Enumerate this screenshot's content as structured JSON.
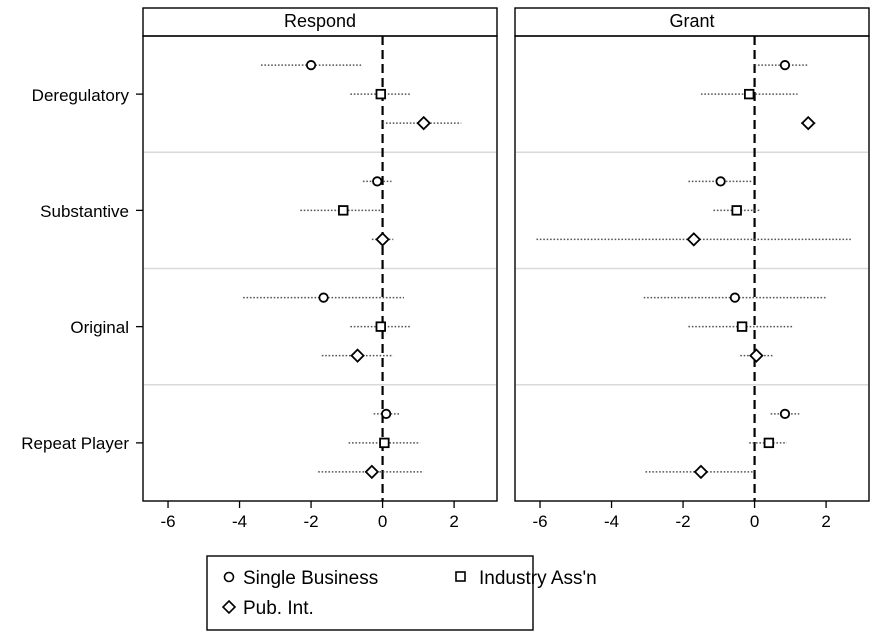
{
  "chart_data": {
    "type": "scatter",
    "subtype": "coefficient-plot-with-confidence-intervals",
    "facets": [
      "Respond",
      "Grant"
    ],
    "categories": [
      "Deregulatory",
      "Substantive",
      "Original",
      "Repeat Player"
    ],
    "xlim": [
      -6.7,
      3.2
    ],
    "x_ticks": [
      -6,
      -4,
      -2,
      0,
      2
    ],
    "x_tick_labels": [
      "-6",
      "-4",
      "-2",
      "0",
      "2"
    ],
    "reference_line_x": 0,
    "grid": false,
    "legend": {
      "placement": "bottom",
      "entries": [
        {
          "label": "Single Business",
          "marker": "circle"
        },
        {
          "label": "Industry Ass'n",
          "marker": "square"
        },
        {
          "label": "Pub. Int.",
          "marker": "diamond"
        }
      ]
    },
    "series": [
      {
        "name": "Single Business",
        "marker": "circle",
        "panels": {
          "Respond": [
            {
              "category": "Deregulatory",
              "estimate": -2.0,
              "ci": [
                -3.4,
                -0.6
              ]
            },
            {
              "category": "Substantive",
              "estimate": -0.15,
              "ci": [
                -0.55,
                0.25
              ]
            },
            {
              "category": "Original",
              "estimate": -1.65,
              "ci": [
                -3.9,
                0.6
              ]
            },
            {
              "category": "Repeat Player",
              "estimate": 0.1,
              "ci": [
                -0.25,
                0.5
              ]
            }
          ],
          "Grant": [
            {
              "category": "Deregulatory",
              "estimate": 0.85,
              "ci": [
                0.0,
                1.5
              ]
            },
            {
              "category": "Substantive",
              "estimate": -0.95,
              "ci": [
                -1.85,
                -0.05
              ]
            },
            {
              "category": "Original",
              "estimate": -0.55,
              "ci": [
                -3.1,
                2.0
              ]
            },
            {
              "category": "Repeat Player",
              "estimate": 0.85,
              "ci": [
                0.45,
                1.25
              ]
            }
          ]
        }
      },
      {
        "name": "Industry Ass'n",
        "marker": "square",
        "panels": {
          "Respond": [
            {
              "category": "Deregulatory",
              "estimate": -0.05,
              "ci": [
                -0.9,
                0.8
              ]
            },
            {
              "category": "Substantive",
              "estimate": -1.1,
              "ci": [
                -2.3,
                0.0
              ]
            },
            {
              "category": "Original",
              "estimate": -0.05,
              "ci": [
                -0.9,
                0.8
              ]
            },
            {
              "category": "Repeat Player",
              "estimate": 0.05,
              "ci": [
                -0.95,
                1.05
              ]
            }
          ],
          "Grant": [
            {
              "category": "Deregulatory",
              "estimate": -0.15,
              "ci": [
                -1.5,
                1.2
              ]
            },
            {
              "category": "Substantive",
              "estimate": -0.5,
              "ci": [
                -1.15,
                0.15
              ]
            },
            {
              "category": "Original",
              "estimate": -0.35,
              "ci": [
                -1.85,
                1.1
              ]
            },
            {
              "category": "Repeat Player",
              "estimate": 0.4,
              "ci": [
                -0.15,
                0.9
              ]
            }
          ]
        }
      },
      {
        "name": "Pub. Int.",
        "marker": "diamond",
        "panels": {
          "Respond": [
            {
              "category": "Deregulatory",
              "estimate": 1.15,
              "ci": [
                0.0,
                2.2
              ]
            },
            {
              "category": "Substantive",
              "estimate": 0.0,
              "ci": [
                -0.3,
                0.3
              ]
            },
            {
              "category": "Original",
              "estimate": -0.7,
              "ci": [
                -1.7,
                0.3
              ]
            },
            {
              "category": "Repeat Player",
              "estimate": -0.3,
              "ci": [
                -1.8,
                1.15
              ]
            }
          ],
          "Grant": [
            {
              "category": "Deregulatory",
              "estimate": 1.5,
              "ci": [
                1.3,
                1.7
              ]
            },
            {
              "category": "Substantive",
              "estimate": -1.7,
              "ci": [
                -6.1,
                2.7
              ]
            },
            {
              "category": "Original",
              "estimate": 0.05,
              "ci": [
                -0.4,
                0.5
              ]
            },
            {
              "category": "Repeat Player",
              "estimate": -1.5,
              "ci": [
                -3.05,
                0.0
              ]
            }
          ]
        }
      }
    ]
  }
}
